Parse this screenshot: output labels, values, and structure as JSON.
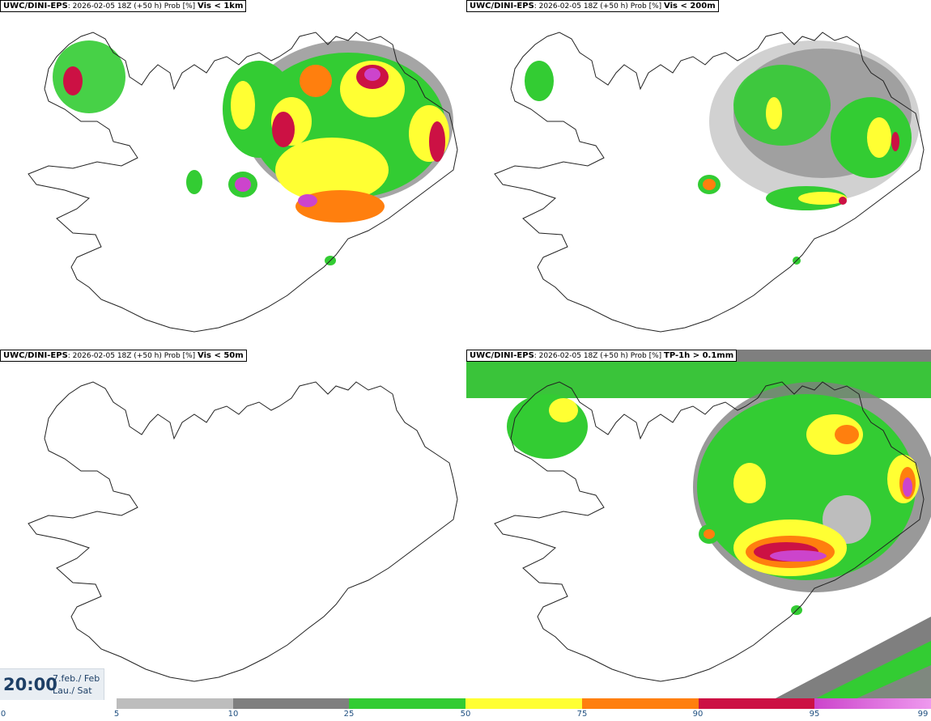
{
  "panels": [
    {
      "model": "UWC/DINI-EPS",
      "run": ": 2026-02-05 18Z (+50 h) Prob [%]",
      "variable": "Vis < 1km"
    },
    {
      "model": "UWC/DINI-EPS",
      "run": ": 2026-02-05 18Z (+50 h) Prob [%]",
      "variable": "Vis < 200m"
    },
    {
      "model": "UWC/DINI-EPS",
      "run": ": 2026-02-05 18Z (+50 h) Prob [%]",
      "variable": "Vis < 50m"
    },
    {
      "model": "UWC/DINI-EPS",
      "run": ": 2026-02-05 18Z (+50 h) Prob [%]",
      "variable": "TP-1h > 0.1mm"
    }
  ],
  "time": {
    "clock": "20:00",
    "date": "7.feb./ Feb",
    "day": "Lau./ Sat"
  },
  "colorbar": {
    "ticks": [
      "0",
      "5",
      "10",
      "25",
      "50",
      "75",
      "90",
      "95",
      "99"
    ],
    "colors": [
      "#bdbdbd",
      "#7f7f7f",
      "#33cc33",
      "#ffff33",
      "#ff7f0e",
      "#cc1144",
      "#cc44cc"
    ]
  }
}
